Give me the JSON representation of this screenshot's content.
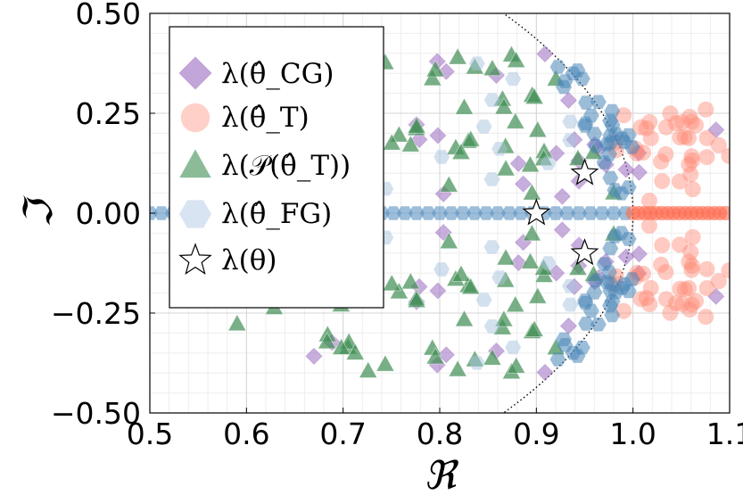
{
  "chart_data": {
    "type": "scatter",
    "title": "",
    "xlabel": "ℜ",
    "ylabel": "ℑ",
    "xlim": [
      0.5,
      1.1
    ],
    "ylim": [
      -0.5,
      0.5
    ],
    "xticks": [
      0.5,
      0.6,
      0.7,
      0.8,
      0.9,
      1.0,
      1.1
    ],
    "xtick_labels": [
      "0.5",
      "0.6",
      "0.7",
      "0.8",
      "0.9",
      "1.0",
      "1.1"
    ],
    "yticks": [
      0.5,
      0.25,
      0.0,
      -0.25,
      -0.5
    ],
    "ytick_labels": [
      "0.50",
      "0.25",
      "0.00",
      "−0.25",
      "−0.50"
    ],
    "grid": true,
    "minor_grid": true,
    "legend_position": "top-left",
    "legend": [
      {
        "name": "λ(θ̂_CG)",
        "marker": "diamond",
        "color": "#9b6bc0"
      },
      {
        "name": "λ(θ̂_T)",
        "marker": "circle",
        "color": "#ff8a76"
      },
      {
        "name": "λ(𝒫(θ̂_T))",
        "marker": "triangle",
        "color": "#3f8d53"
      },
      {
        "name": "λ(θ̂_FG)",
        "marker": "hexagon",
        "color": "#a8c4e0"
      },
      {
        "name": "λ(θ)",
        "marker": "star",
        "color": "#ffffff"
      }
    ],
    "reference_curve": {
      "style": "dotted",
      "description": "unit circle boundary",
      "radius": 1.0
    },
    "series": [
      {
        "name": "λ(θ)",
        "marker": "star",
        "points": [
          [
            0.95,
            0.1
          ],
          [
            0.9,
            0.0
          ],
          [
            0.95,
            -0.1
          ]
        ]
      },
      {
        "name": "λ(θ̂_T)",
        "marker": "circle",
        "description": "dense cluster near real part 1.0–1.1, plus real-axis points",
        "x_range": [
          0.98,
          1.1
        ],
        "y_range": [
          -0.25,
          0.25
        ]
      },
      {
        "name": "λ(θ̂_CG)",
        "marker": "diamond",
        "description": "scattered within the unit disk and beyond toward 1.1",
        "x_range": [
          0.58,
          1.1
        ],
        "y_range": [
          -0.4,
          0.4
        ]
      },
      {
        "name": "λ(𝒫(θ̂_T))",
        "marker": "triangle",
        "description": "projected eigenvalues inside the unit circle",
        "x_range": [
          0.5,
          0.99
        ],
        "y_range": [
          -0.4,
          0.4
        ]
      },
      {
        "name": "λ(θ̂_FG)",
        "marker": "hexagon",
        "description": "eigenvalues mostly hugging the unit circle and the real axis",
        "x_range": [
          0.5,
          1.0
        ],
        "y_range": [
          -0.4,
          0.4
        ]
      }
    ]
  }
}
